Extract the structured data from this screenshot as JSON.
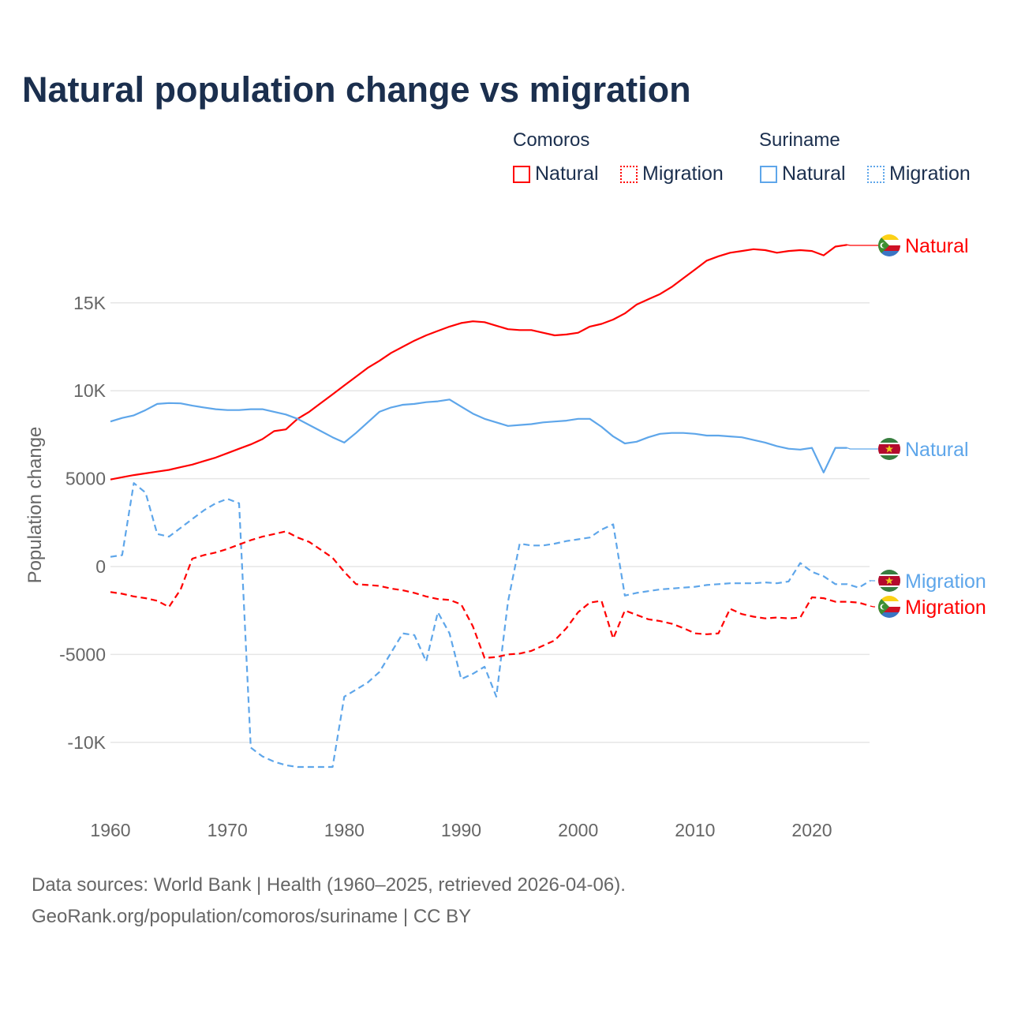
{
  "chart_data": {
    "type": "line",
    "title": "Natural population change vs migration",
    "xlabel": "",
    "ylabel": "Population change",
    "xlim": [
      1960,
      2025
    ],
    "ylim": [
      -12500,
      19000
    ],
    "x_ticks": [
      1960,
      1970,
      1980,
      1990,
      2000,
      2010,
      2020
    ],
    "x_tick_labels": [
      "1960",
      "1970",
      "1980",
      "1990",
      "2000",
      "2010",
      "2020"
    ],
    "y_ticks": [
      -10000,
      -5000,
      0,
      5000,
      10000,
      15000
    ],
    "y_tick_labels": [
      "-10K",
      "-5000",
      "0",
      "5000",
      "10K",
      "15K"
    ],
    "grid": true,
    "legend": {
      "placement": "top-right",
      "groups": [
        {
          "country": "Comoros",
          "items": [
            "Natural",
            "Migration"
          ]
        },
        {
          "country": "Suriname",
          "items": [
            "Natural",
            "Migration"
          ]
        }
      ]
    },
    "series": [
      {
        "name": "Comoros Natural",
        "country": "Comoros",
        "kind": "Natural",
        "label": "Natural",
        "color": "#ff0000",
        "dash": "solid",
        "flag": "comoros",
        "start": 1960,
        "values": [
          4950,
          5080,
          5200,
          5300,
          5400,
          5500,
          5650,
          5800,
          6000,
          6200,
          6450,
          6700,
          6950,
          7250,
          7700,
          7800,
          8400,
          8800,
          9300,
          9800,
          10300,
          10800,
          11300,
          11700,
          12150,
          12500,
          12850,
          13150,
          13400,
          13650,
          13850,
          13950,
          13900,
          13700,
          13500,
          13450,
          13450,
          13300,
          13150,
          13200,
          13300,
          13650,
          13800,
          14050,
          14400,
          14900,
          15200,
          15500,
          15900,
          16400,
          16900,
          17400,
          17650,
          17850,
          17950,
          18050,
          18000,
          17850,
          17950,
          18000,
          17950,
          17700,
          18200,
          18300
        ]
      },
      {
        "name": "Suriname Natural",
        "country": "Suriname",
        "kind": "Natural",
        "label": "Natural",
        "color": "#5ea6ea",
        "dash": "solid",
        "flag": "suriname",
        "start": 1960,
        "values": [
          8250,
          8450,
          8600,
          8900,
          9250,
          9300,
          9280,
          9150,
          9050,
          8950,
          8900,
          8900,
          8950,
          8950,
          8800,
          8650,
          8400,
          8050,
          7700,
          7350,
          7050,
          7600,
          8200,
          8800,
          9050,
          9200,
          9250,
          9350,
          9400,
          9500,
          9100,
          8700,
          8400,
          8200,
          8000,
          8050,
          8100,
          8200,
          8250,
          8300,
          8400,
          8400,
          7950,
          7400,
          7000,
          7100,
          7350,
          7550,
          7600,
          7600,
          7550,
          7450,
          7450,
          7400,
          7350,
          7200,
          7050,
          6850,
          6700,
          6650,
          6750,
          5350,
          6750,
          6750
        ]
      },
      {
        "name": "Suriname Migration",
        "country": "Suriname",
        "kind": "Migration",
        "label": "Migration",
        "color": "#5ea6ea",
        "dash": "dashed",
        "flag": "suriname",
        "start": 1960,
        "values": [
          550,
          650,
          4750,
          4200,
          1850,
          1700,
          2200,
          2700,
          3200,
          3600,
          3850,
          3600,
          -10300,
          -10800,
          -11100,
          -11300,
          -11400,
          -11400,
          -11400,
          -11400,
          -7400,
          -7000,
          -6600,
          -6000,
          -4900,
          -3800,
          -3900,
          -5400,
          -2600,
          -3800,
          -6400,
          -6100,
          -5700,
          -7400,
          -2000,
          1300,
          1200,
          1200,
          1300,
          1450,
          1550,
          1650,
          2100,
          2400,
          -1650,
          -1500,
          -1400,
          -1300,
          -1250,
          -1200,
          -1150,
          -1050,
          -1000,
          -950,
          -950,
          -950,
          -900,
          -950,
          -850,
          200,
          -300,
          -550,
          -1000,
          -1000,
          -1200,
          -800
        ]
      },
      {
        "name": "Comoros Migration",
        "country": "Comoros",
        "kind": "Migration",
        "label": "Migration",
        "color": "#ff0000",
        "dash": "dashed",
        "flag": "comoros",
        "start": 1960,
        "values": [
          -1450,
          -1550,
          -1700,
          -1800,
          -1950,
          -2300,
          -1300,
          450,
          650,
          800,
          1000,
          1250,
          1500,
          1700,
          1850,
          2000,
          1650,
          1400,
          950,
          500,
          -300,
          -1000,
          -1050,
          -1100,
          -1250,
          -1350,
          -1500,
          -1700,
          -1850,
          -1900,
          -2150,
          -3400,
          -5200,
          -5150,
          -5000,
          -4950,
          -4800,
          -4500,
          -4200,
          -3500,
          -2600,
          -2050,
          -1950,
          -4100,
          -2500,
          -2750,
          -3000,
          -3100,
          -3250,
          -3500,
          -3800,
          -3850,
          -3800,
          -2400,
          -2700,
          -2850,
          -2950,
          -2900,
          -2950,
          -2900,
          -1750,
          -1800,
          -2000,
          -2000,
          -2050,
          -2250
        ]
      }
    ]
  },
  "footer": {
    "line1": "Data sources: World Bank | Health (1960–2025, retrieved 2026-04-06).",
    "line2": "GeoRank.org/population/comoros/suriname | CC BY"
  }
}
